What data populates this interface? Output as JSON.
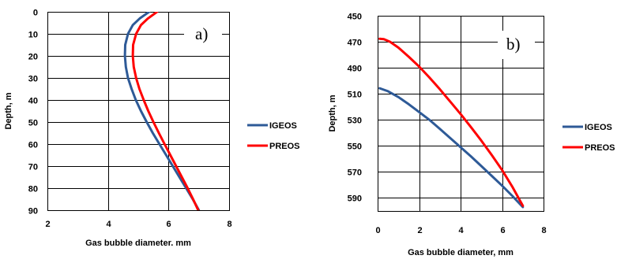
{
  "chart_data": [
    {
      "type": "line",
      "panel_label": "a)",
      "xlabel": "Gas bubble diameter. mm",
      "ylabel": "Depth, m",
      "xlim": [
        2,
        8
      ],
      "ylim": [
        90,
        0
      ],
      "xticks": [
        "2",
        "4",
        "6",
        "8"
      ],
      "yticks": [
        "0",
        "10",
        "20",
        "30",
        "40",
        "50",
        "60",
        "70",
        "80",
        "90"
      ],
      "grid": true,
      "legend_position": "right",
      "series": [
        {
          "name": "IGEOS",
          "color": "#2e5a97",
          "points": [
            [
              5.36,
              0
            ],
            [
              5.05,
              3
            ],
            [
              4.82,
              6
            ],
            [
              4.66,
              10
            ],
            [
              4.57,
              15
            ],
            [
              4.56,
              20
            ],
            [
              4.59,
              25
            ],
            [
              4.66,
              30
            ],
            [
              4.78,
              35
            ],
            [
              4.92,
              40
            ],
            [
              5.09,
              45
            ],
            [
              5.28,
              50
            ],
            [
              5.48,
              55
            ],
            [
              5.7,
              60
            ],
            [
              5.92,
              65
            ],
            [
              6.14,
              70
            ],
            [
              6.36,
              75
            ],
            [
              6.58,
              80
            ],
            [
              6.8,
              85
            ],
            [
              7.0,
              90
            ]
          ]
        },
        {
          "name": "PREOS",
          "color": "#ff0000",
          "points": [
            [
              5.62,
              0
            ],
            [
              5.32,
              3
            ],
            [
              5.09,
              6
            ],
            [
              4.93,
              10
            ],
            [
              4.83,
              15
            ],
            [
              4.82,
              20
            ],
            [
              4.85,
              25
            ],
            [
              4.93,
              30
            ],
            [
              5.04,
              35
            ],
            [
              5.18,
              40
            ],
            [
              5.33,
              45
            ],
            [
              5.5,
              50
            ],
            [
              5.68,
              55
            ],
            [
              5.87,
              60
            ],
            [
              6.06,
              65
            ],
            [
              6.25,
              70
            ],
            [
              6.44,
              75
            ],
            [
              6.63,
              80
            ],
            [
              6.81,
              85
            ],
            [
              6.98,
              90
            ]
          ]
        }
      ]
    },
    {
      "type": "line",
      "panel_label": "b)",
      "xlabel": "Gas bubble diameter, mm",
      "ylabel": "Depth, m",
      "xlim": [
        0,
        8
      ],
      "ylim": [
        600,
        450
      ],
      "xticks": [
        "0",
        "2",
        "4",
        "6",
        "8"
      ],
      "yticks": [
        "450",
        "470",
        "490",
        "510",
        "530",
        "550",
        "570",
        "590"
      ],
      "grid": true,
      "legend_position": "right",
      "series": [
        {
          "name": "IGEOS",
          "color": "#2e5a97",
          "points": [
            [
              0.1,
              505.7
            ],
            [
              0.5,
              508
            ],
            [
              1.0,
              512.5
            ],
            [
              1.5,
              518
            ],
            [
              2.0,
              524
            ],
            [
              2.5,
              530
            ],
            [
              3.0,
              537
            ],
            [
              3.5,
              544
            ],
            [
              4.0,
              551
            ],
            [
              4.5,
              558
            ],
            [
              5.0,
              565.5
            ],
            [
              5.5,
              573
            ],
            [
              6.0,
              580.5
            ],
            [
              6.5,
              588.5
            ],
            [
              7.0,
              597
            ]
          ]
        },
        {
          "name": "PREOS",
          "color": "#ff0000",
          "points": [
            [
              0.1,
              467.7
            ],
            [
              0.3,
              468
            ],
            [
              0.6,
              470
            ],
            [
              1.0,
              474.5
            ],
            [
              1.5,
              481.5
            ],
            [
              2.0,
              489
            ],
            [
              2.5,
              497.5
            ],
            [
              3.0,
              506.5
            ],
            [
              3.5,
              516
            ],
            [
              4.0,
              525.5
            ],
            [
              4.5,
              535.5
            ],
            [
              5.0,
              546
            ],
            [
              5.5,
              557
            ],
            [
              6.0,
              568.5
            ],
            [
              6.5,
              581.5
            ],
            [
              7.0,
              596
            ]
          ]
        }
      ]
    }
  ]
}
